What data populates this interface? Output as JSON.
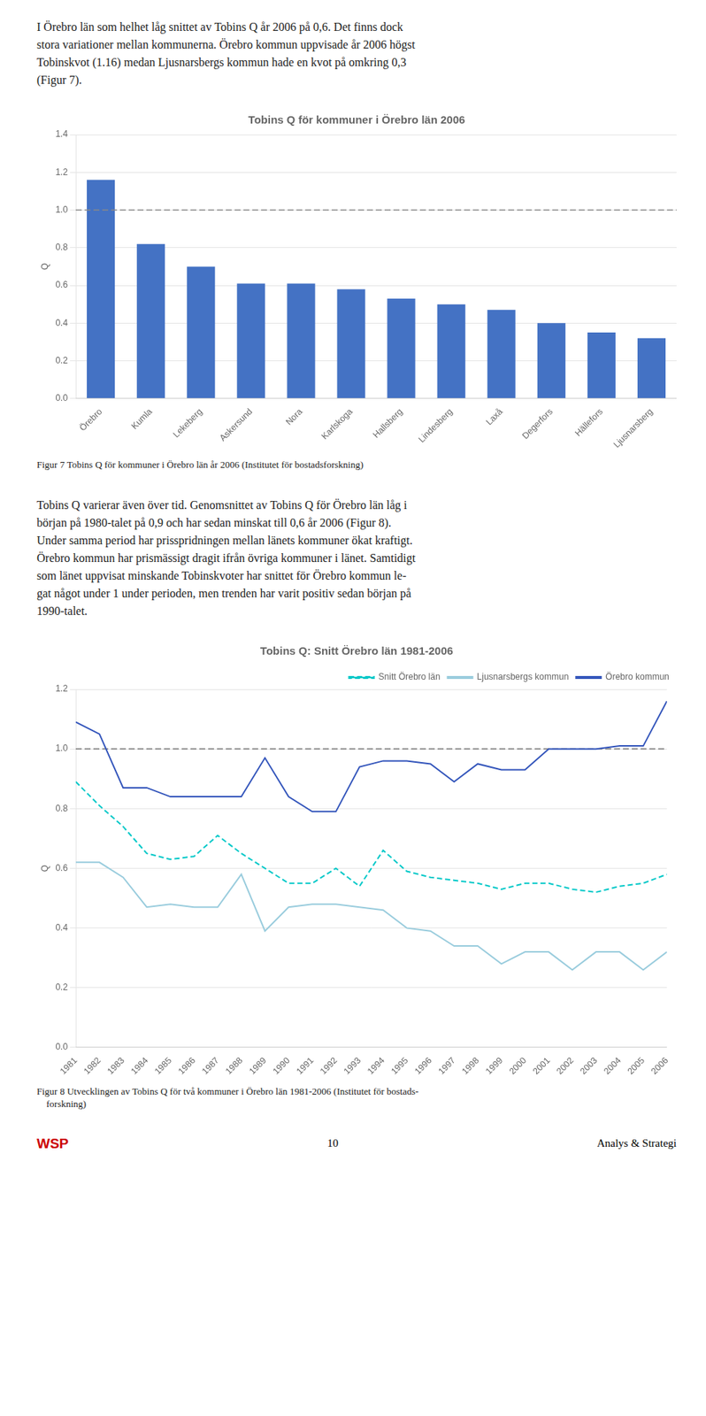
{
  "chart_data": [
    {
      "type": "bar",
      "title": "Tobins Q för kommuner i Örebro län 2006",
      "categories": [
        "Örebro",
        "Kumla",
        "Lekeberg",
        "Askersund",
        "Nora",
        "Karlskoga",
        "Hallsberg",
        "Lindesberg",
        "Laxå",
        "Degerfors",
        "Hällefors",
        "Ljusnarsberg"
      ],
      "values": [
        1.16,
        0.82,
        0.7,
        0.61,
        0.61,
        0.58,
        0.53,
        0.5,
        0.47,
        0.4,
        0.35,
        0.32
      ],
      "color": "#4472C4",
      "ylabel": "Q",
      "ylim": [
        0.0,
        1.4
      ],
      "yticks": [
        {
          "value": 0.0,
          "label": "0.0"
        },
        0.2,
        0.4,
        0.6,
        0.8,
        {
          "value": 1.0,
          "label": "1.0"
        },
        1.2,
        1.4
      ],
      "grid": "y",
      "reference_line": {
        "value": 1.0,
        "color": "#888888",
        "line_style": "dashed"
      },
      "annotations": [
        {
          "text": "I Örebro län som helhet låg snittet av Tobins Q år 2006 på 0,6. Det finns dock\nstora variationer mellan kommunerna. Örebro kommun uppvisade år 2006 högst\nTobinskvot (1.16) medan Ljusnarsbergs kommun hade en kvot på omkring 0,3\n(Figur 7)."
        },
        {
          "text": "Figur 7 Tobins Q för kommuner i Örebro län år 2006 (Institutet för bostadsforskning)"
        }
      ]
    },
    {
      "type": "line",
      "title": "Tobins Q: Snitt Örebro län 1981-2006",
      "x": [
        1981,
        1982,
        1983,
        1984,
        1985,
        1986,
        1987,
        1988,
        1989,
        1990,
        1991,
        1992,
        1993,
        1994,
        1995,
        1996,
        1997,
        1998,
        1999,
        2000,
        2001,
        2002,
        2003,
        2004,
        2005,
        2006
      ],
      "xlim": [
        1981,
        2006
      ],
      "xticks": [
        1981,
        1982,
        1983,
        1984,
        1985,
        1986,
        1987,
        1988,
        1989,
        1990,
        1991,
        1992,
        1993,
        1994,
        1995,
        1996,
        1997,
        1998,
        1999,
        2000,
        2001,
        2002,
        2003,
        2004,
        2005,
        2006
      ],
      "ylabel": "Q",
      "ylim": [
        0.0,
        1.2
      ],
      "yticks": [
        {
          "value": 0.0,
          "label": "0.0"
        },
        0.2,
        0.4,
        0.6,
        0.8,
        {
          "value": 1.0,
          "label": "1.0"
        },
        1.2
      ],
      "grid": "y",
      "legend": "upper right",
      "series": [
        {
          "name": "Snitt Örebro län",
          "color": "#00C8C8",
          "line_style": "dashed",
          "values": [
            0.89,
            0.81,
            0.74,
            0.65,
            0.63,
            0.64,
            0.71,
            0.65,
            0.6,
            0.55,
            0.55,
            0.6,
            0.54,
            0.66,
            0.59,
            0.57,
            0.56,
            0.55,
            0.53,
            0.55,
            0.55,
            0.53,
            0.52,
            0.54,
            0.55,
            0.58
          ]
        },
        {
          "name": "Ljusnarsbergs kommun",
          "color": "#99CCDD",
          "line_style": "solid",
          "values": [
            0.62,
            0.62,
            0.57,
            0.47,
            0.48,
            0.47,
            0.47,
            0.58,
            0.39,
            0.47,
            0.48,
            0.48,
            0.47,
            0.46,
            0.4,
            0.39,
            0.34,
            0.34,
            0.28,
            0.32,
            0.32,
            0.26,
            0.32,
            0.32,
            0.26,
            0.32
          ]
        },
        {
          "name": "Örebro kommun",
          "color": "#3355BB",
          "line_style": "solid",
          "values": [
            1.09,
            1.05,
            0.87,
            0.87,
            0.84,
            0.84,
            0.84,
            0.84,
            0.97,
            0.84,
            0.79,
            0.79,
            0.94,
            0.96,
            0.96,
            0.95,
            0.89,
            0.95,
            0.93,
            0.93,
            1.0,
            1.0,
            1.0,
            1.01,
            1.01,
            1.16
          ]
        }
      ],
      "reference_line": {
        "value": 1.0,
        "color": "#888888",
        "line_style": "dashed"
      },
      "annotations": [
        {
          "text": "Tobins Q varierar även över tid. Genomsnittet av Tobins Q för Örebro län låg i\nbörjan på 1980-talet på 0,9 och har sedan minskat till 0,6 år 2006 (Figur 8).\nUnder samma period har prisspridningen mellan länets kommuner ökat kraftigt.\nÖrebro kommun har prismässigt dragit ifrån övriga kommuner i länet. Samtidigt\nsom länet uppvisat minskande Tobinskvoter har snittet för Örebro kommun le-\ngat något under 1 under perioden, men trenden har varit positiv sedan början på\n1990-talet."
        },
        {
          "text": "Figur 8 Utvecklingen av Tobins Q för två kommuner i Örebro län 1981-2006 (Institutet för bostads-\n    forskning)"
        },
        {
          "text": "WSP",
          "color": "#CC0000"
        },
        {
          "text": "10"
        },
        {
          "text": "Analys & Strategi"
        }
      ]
    }
  ]
}
